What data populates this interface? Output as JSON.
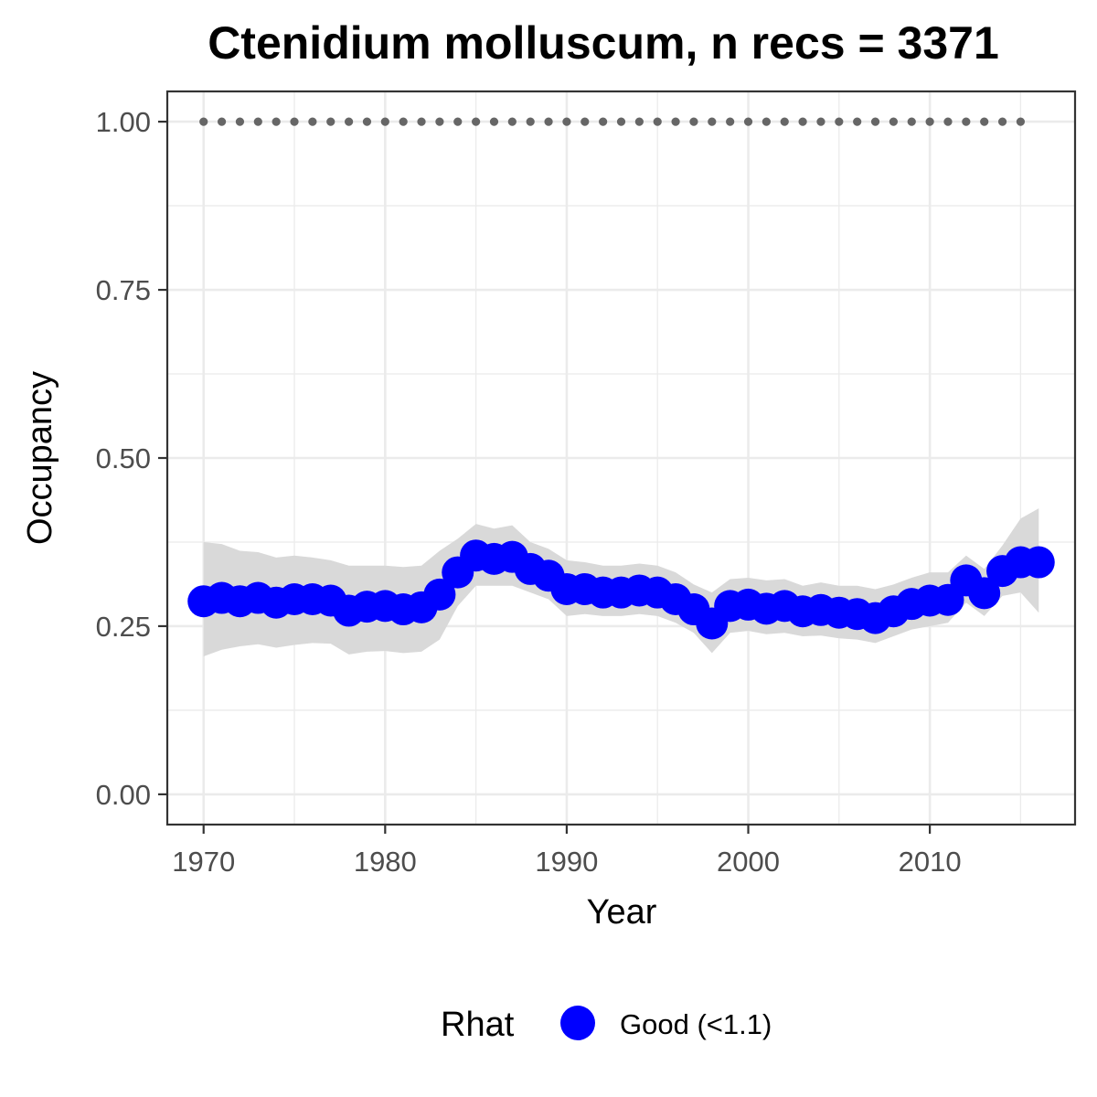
{
  "chart_data": {
    "type": "line",
    "title": "Ctenidium molluscum, n recs = 3371",
    "xlabel": "Year",
    "ylabel": "Occupancy",
    "xlim": [
      1968,
      2018
    ],
    "ylim": [
      -0.045,
      1.045
    ],
    "x_ticks": [
      1970,
      1980,
      1990,
      2000,
      2010
    ],
    "x_tick_labels": [
      "1970",
      "1980",
      "1990",
      "2000",
      "2010"
    ],
    "y_ticks": [
      0,
      0.25,
      0.5,
      0.75,
      1.0
    ],
    "y_tick_labels": [
      "0.00",
      "0.25",
      "0.50",
      "0.75",
      "1.00"
    ],
    "grid": true,
    "legend": {
      "title": "Rhat",
      "position": "bottom",
      "entries": [
        {
          "label": "Good (<1.1)",
          "color": "#0000ff"
        }
      ]
    },
    "colors": {
      "points": "#0000ff",
      "ribbon": "#d9d9d9",
      "reference": "#666666",
      "grid": "#ebebeb",
      "panel_border": "#333333"
    },
    "series": [
      {
        "role": "estimate",
        "x": [
          1970,
          1971,
          1972,
          1973,
          1974,
          1975,
          1976,
          1977,
          1978,
          1979,
          1980,
          1981,
          1982,
          1983,
          1984,
          1985,
          1986,
          1987,
          1988,
          1989,
          1990,
          1991,
          1992,
          1993,
          1994,
          1995,
          1996,
          1997,
          1998,
          1999,
          2000,
          2001,
          2002,
          2003,
          2004,
          2005,
          2006,
          2007,
          2008,
          2009,
          2010,
          2011,
          2012,
          2013,
          2014,
          2015,
          2016
        ],
        "values": [
          0.287,
          0.292,
          0.287,
          0.292,
          0.285,
          0.29,
          0.29,
          0.288,
          0.273,
          0.279,
          0.28,
          0.275,
          0.278,
          0.297,
          0.33,
          0.355,
          0.35,
          0.353,
          0.335,
          0.325,
          0.305,
          0.305,
          0.3,
          0.3,
          0.303,
          0.3,
          0.29,
          0.275,
          0.254,
          0.28,
          0.282,
          0.276,
          0.28,
          0.272,
          0.274,
          0.27,
          0.268,
          0.262,
          0.272,
          0.283,
          0.288,
          0.289,
          0.318,
          0.299,
          0.332,
          0.345,
          0.345
        ],
        "lower": [
          0.205,
          0.215,
          0.22,
          0.223,
          0.218,
          0.222,
          0.225,
          0.224,
          0.208,
          0.212,
          0.213,
          0.21,
          0.212,
          0.23,
          0.28,
          0.31,
          0.31,
          0.31,
          0.3,
          0.29,
          0.265,
          0.268,
          0.265,
          0.265,
          0.268,
          0.265,
          0.255,
          0.24,
          0.21,
          0.24,
          0.243,
          0.238,
          0.24,
          0.235,
          0.236,
          0.232,
          0.23,
          0.225,
          0.235,
          0.245,
          0.25,
          0.255,
          0.285,
          0.265,
          0.295,
          0.3,
          0.27
        ],
        "upper": [
          0.375,
          0.372,
          0.362,
          0.36,
          0.352,
          0.355,
          0.352,
          0.348,
          0.34,
          0.34,
          0.34,
          0.338,
          0.34,
          0.362,
          0.38,
          0.402,
          0.395,
          0.4,
          0.375,
          0.365,
          0.348,
          0.345,
          0.34,
          0.34,
          0.343,
          0.34,
          0.33,
          0.312,
          0.3,
          0.32,
          0.322,
          0.318,
          0.32,
          0.31,
          0.315,
          0.31,
          0.31,
          0.305,
          0.312,
          0.322,
          0.33,
          0.33,
          0.355,
          0.335,
          0.37,
          0.41,
          0.425
        ]
      },
      {
        "role": "reference",
        "x": [
          1970,
          1971,
          1972,
          1973,
          1974,
          1975,
          1976,
          1977,
          1978,
          1979,
          1980,
          1981,
          1982,
          1983,
          1984,
          1985,
          1986,
          1987,
          1988,
          1989,
          1990,
          1991,
          1992,
          1993,
          1994,
          1995,
          1996,
          1997,
          1998,
          1999,
          2000,
          2001,
          2002,
          2003,
          2004,
          2005,
          2006,
          2007,
          2008,
          2009,
          2010,
          2011,
          2012,
          2013,
          2014,
          2015
        ],
        "values": [
          1,
          1,
          1,
          1,
          1,
          1,
          1,
          1,
          1,
          1,
          1,
          1,
          1,
          1,
          1,
          1,
          1,
          1,
          1,
          1,
          1,
          1,
          1,
          1,
          1,
          1,
          1,
          1,
          1,
          1,
          1,
          1,
          1,
          1,
          1,
          1,
          1,
          1,
          1,
          1,
          1,
          1,
          1,
          1,
          1,
          1
        ]
      }
    ]
  }
}
